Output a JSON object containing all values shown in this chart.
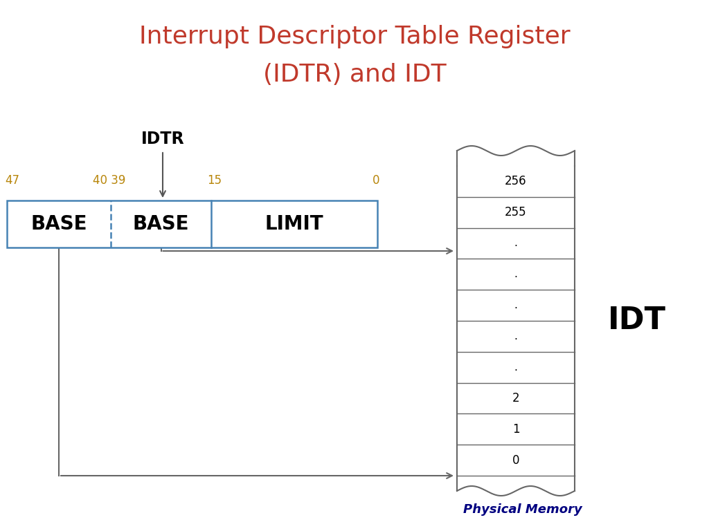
{
  "title_line1": "Interrupt Descriptor Table Register",
  "title_line2": "(IDTR) and IDT",
  "title_color": "#C0392B",
  "title_fontsize": 26,
  "background_color": "#FFFFFF",
  "idtr_label": "IDTR",
  "idtr_label_fontsize": 17,
  "bit_label_color": "#B8860B",
  "bit_label_fontsize": 12,
  "register_fields": [
    "BASE",
    "BASE",
    "LIMIT"
  ],
  "register_border_color": "#4682B4",
  "register_fontsize": 20,
  "idt_label": "IDT",
  "idt_label_fontsize": 32,
  "idt_rows": [
    "256",
    "255",
    ".",
    ".",
    ".",
    ".",
    ".",
    "2",
    "1",
    "0"
  ],
  "idt_row_fontsize": 12,
  "physical_memory_label": "Physical Memory",
  "physical_memory_color": "#000080",
  "physical_memory_fontsize": 13,
  "line_color": "#666666"
}
